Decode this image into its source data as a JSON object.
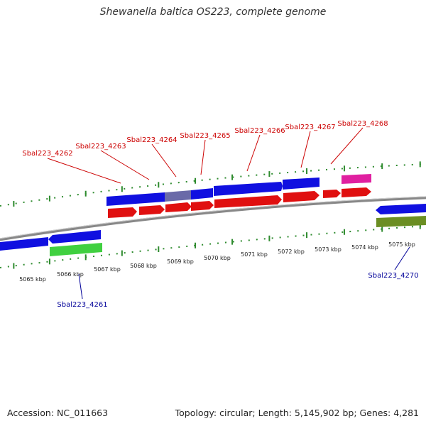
{
  "title": "Shewanella baltica OS223, complete genome",
  "footer": {
    "accession": "Accession: NC_011663",
    "summary": "Topology: circular; Length: 5,145,902 bp; Genes: 4,281"
  },
  "colors": {
    "backbone": "#888888",
    "tick": "#2e8b2e",
    "gene_blue": "#1010e0",
    "gene_red": "#e01010",
    "gene_magenta": "#e020a0",
    "gene_green": "#40d040",
    "gene_olive": "#6b8e23",
    "gene_highlight": "#6a6aa8",
    "label_top": "#cc0000",
    "label_bottom": "#000099",
    "kbp_label": "#222222"
  },
  "kbp_labels": [
    "5065 kbp",
    "5066 kbp",
    "5067 kbp",
    "5068 kbp",
    "5069 kbp",
    "5070 kbp",
    "5071 kbp",
    "5072 kbp",
    "5073 kbp",
    "5074 kbp",
    "5075 kbp"
  ],
  "top_gene_labels": [
    "Sbal223_4262",
    "Sbal223_4263",
    "Sbal223_4264",
    "Sbal223_4265",
    "Sbal223_4266",
    "Sbal223_4267",
    "Sbal223_4268"
  ],
  "bottom_gene_labels": [
    "Sbal223_4261",
    "Sbal223_4270"
  ]
}
